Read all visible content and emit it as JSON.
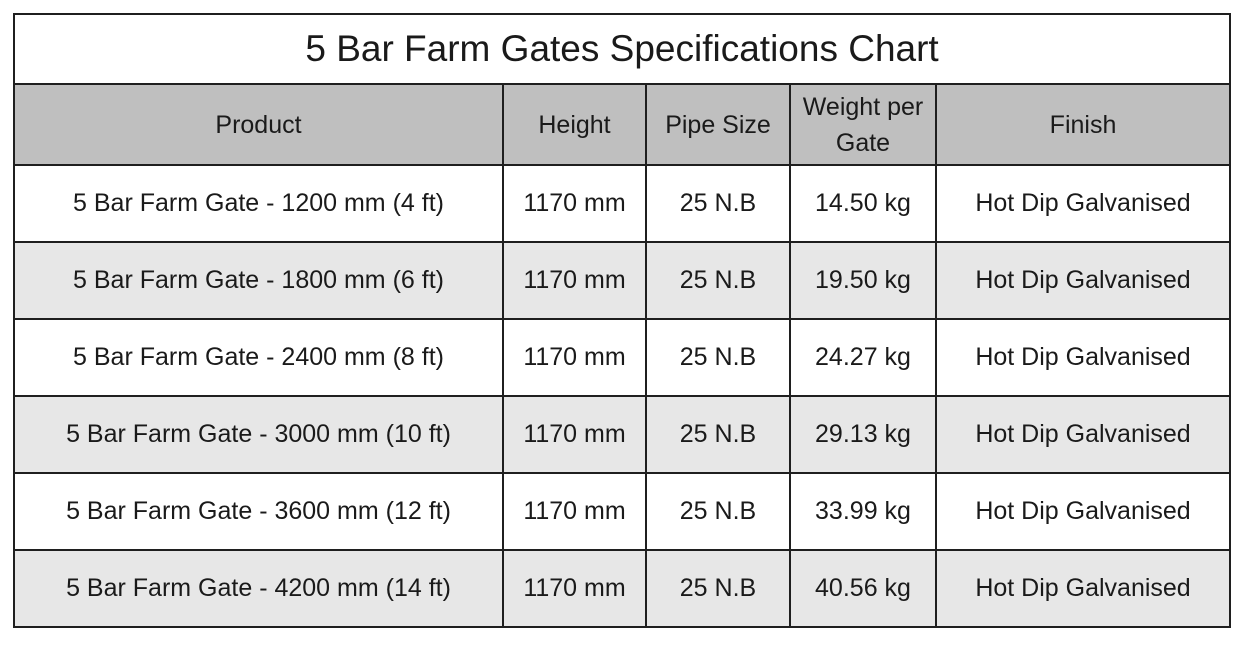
{
  "title": "5 Bar Farm Gates Specifications Chart",
  "columns": [
    "Product",
    "Height",
    "Pipe Size",
    "Weight per Gate",
    "Finish"
  ],
  "rows": [
    {
      "product": "5 Bar Farm Gate - 1200 mm (4 ft)",
      "height": "1170 mm",
      "pipe_size": "25 N.B",
      "weight": "14.50 kg",
      "finish": "Hot Dip Galvanised"
    },
    {
      "product": "5 Bar Farm Gate - 1800 mm (6 ft)",
      "height": "1170 mm",
      "pipe_size": "25 N.B",
      "weight": "19.50 kg",
      "finish": "Hot Dip Galvanised"
    },
    {
      "product": "5 Bar Farm Gate - 2400 mm (8 ft)",
      "height": "1170 mm",
      "pipe_size": "25 N.B",
      "weight": "24.27 kg",
      "finish": "Hot Dip Galvanised"
    },
    {
      "product": "5 Bar Farm Gate - 3000 mm (10 ft)",
      "height": "1170 mm",
      "pipe_size": "25 N.B",
      "weight": "29.13 kg",
      "finish": "Hot Dip Galvanised"
    },
    {
      "product": "5 Bar Farm Gate - 3600 mm (12 ft)",
      "height": "1170 mm",
      "pipe_size": "25 N.B",
      "weight": "33.99 kg",
      "finish": "Hot Dip Galvanised"
    },
    {
      "product": "5 Bar Farm Gate - 4200 mm (14 ft)",
      "height": "1170 mm",
      "pipe_size": "25 N.B",
      "weight": "40.56 kg",
      "finish": "Hot Dip Galvanised"
    }
  ],
  "colors": {
    "header_bg": "#bfbfbf",
    "alt_row_bg": "#e7e7e7",
    "border": "#1f1f1f"
  }
}
